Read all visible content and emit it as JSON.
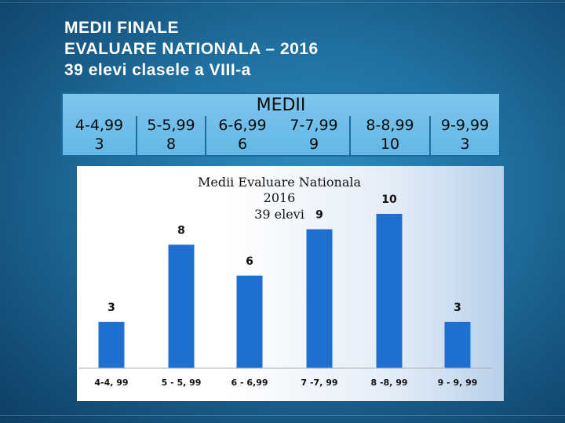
{
  "slide": {
    "title_lines": [
      "MEDII FINALE",
      "EVALUARE NATIONALA – 2016",
      "39 elevi clasele a VIII-a"
    ]
  },
  "summary_table": {
    "header": "MEDII",
    "columns": [
      {
        "range": "4-4,99",
        "count": "3"
      },
      {
        "range": "5-5,99",
        "count": "8"
      },
      {
        "range": "6-6,99",
        "count": "6"
      },
      {
        "range": "7-7,99",
        "count": "9"
      },
      {
        "range": "8-8,99",
        "count": "10"
      },
      {
        "range": "9-9,99",
        "count": "3"
      }
    ]
  },
  "chart_data": {
    "type": "bar",
    "title_lines": [
      "Medii Evaluare Nationala",
      "2016",
      "39 elevi"
    ],
    "categories": [
      "4-4, 99",
      "5 - 5, 99",
      "6 - 6,99",
      "7 -7, 99",
      "8 -8, 99",
      "9 - 9, 99"
    ],
    "values": [
      3,
      8,
      6,
      9,
      10,
      3
    ],
    "ylim": [
      0,
      10
    ],
    "grid": false,
    "legend": "none",
    "bar_color": "#1f6fd0"
  }
}
